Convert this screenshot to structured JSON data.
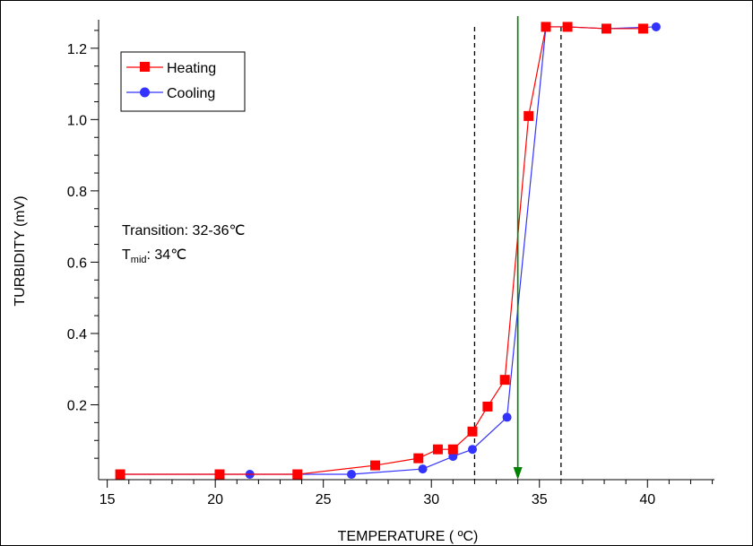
{
  "chart_data": {
    "type": "line",
    "xlabel": "TEMPERATURE ( ºC)",
    "ylabel": "TURBIDITY (mV)",
    "xlim": [
      14.6,
      43.1
    ],
    "ylim": [
      -0.01,
      1.28
    ],
    "x_ticks": [
      {
        "value": 15,
        "label": "15"
      },
      {
        "value": 20,
        "label": "20"
      },
      {
        "value": 25,
        "label": "25"
      },
      {
        "value": 30,
        "label": "30"
      },
      {
        "value": 35,
        "label": "35"
      },
      {
        "value": 40,
        "label": "40"
      }
    ],
    "y_ticks": [
      {
        "value": 0.2,
        "label": "0.2"
      },
      {
        "value": 0.4,
        "label": "0.4"
      },
      {
        "value": 0.6,
        "label": "0.6"
      },
      {
        "value": 0.8,
        "label": "0.8"
      },
      {
        "value": 1.0,
        "label": "1.0"
      },
      {
        "value": 1.2,
        "label": "1.2"
      }
    ],
    "grid": false,
    "legend_position": "top-left",
    "series": [
      {
        "name": "Heating",
        "color": "#ff0000",
        "marker": "square",
        "x": [
          15.6,
          20.2,
          23.8,
          27.4,
          29.4,
          30.3,
          31.0,
          31.9,
          32.6,
          33.4,
          34.5,
          35.3,
          36.3,
          38.1,
          39.8
        ],
        "y": [
          0.005,
          0.005,
          0.005,
          0.03,
          0.05,
          0.075,
          0.075,
          0.125,
          0.195,
          0.27,
          1.01,
          1.26,
          1.26,
          1.255,
          1.255
        ]
      },
      {
        "name": "Cooling",
        "color": "#3333ff",
        "marker": "circle",
        "x": [
          15.6,
          20.2,
          21.6,
          23.8,
          26.3,
          29.6,
          31.0,
          31.9,
          33.5,
          35.3,
          36.3,
          38.1,
          40.4
        ],
        "y": [
          0.005,
          0.005,
          0.005,
          0.005,
          0.005,
          0.02,
          0.055,
          0.075,
          0.165,
          1.26,
          1.26,
          1.255,
          1.26
        ]
      }
    ],
    "reference_lines": [
      {
        "x": 32,
        "style": "dashed",
        "color": "#000000"
      },
      {
        "x": 36,
        "style": "dashed",
        "color": "#000000"
      }
    ],
    "arrow": {
      "x": 34,
      "y_top": 1.29,
      "y_bottom": -0.01,
      "color": "#008000"
    },
    "annotations": {
      "transition": "Transition: 32-36℃",
      "tmid_prefix": "T",
      "tmid_sub": "mid",
      "tmid_value": ": 34℃"
    }
  }
}
